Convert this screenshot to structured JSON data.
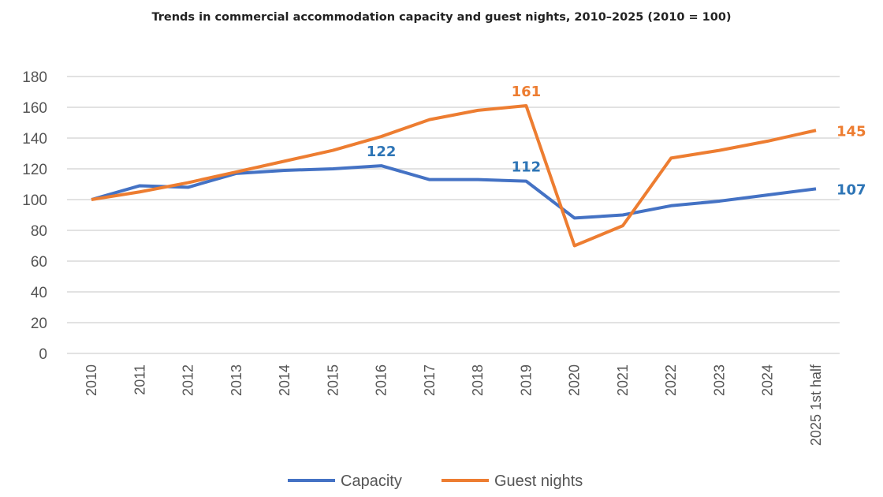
{
  "chart_data": {
    "type": "line",
    "title": "Trends in commercial accommodation capacity and guest nights, 2010–2025 (2010 = 100)",
    "xlabel": "",
    "ylabel": "",
    "categories": [
      "2010",
      "2011",
      "2012",
      "2013",
      "2014",
      "2015",
      "2016",
      "2017",
      "2018",
      "2019",
      "2020",
      "2021",
      "2022",
      "2023",
      "2024",
      "2025 1st half"
    ],
    "ylim": [
      0,
      180
    ],
    "yticks": [
      0,
      20,
      40,
      60,
      80,
      100,
      120,
      140,
      160,
      180
    ],
    "grid": true,
    "legend_position": "bottom",
    "series": [
      {
        "name": "Capacity",
        "color": "#4472C4",
        "label_color": "#2E75B6",
        "values": [
          100,
          109,
          108,
          117,
          119,
          120,
          122,
          113,
          113,
          112,
          88,
          90,
          96,
          99,
          103,
          107
        ],
        "data_labels": {
          "6": "122",
          "9": "112",
          "15": "107"
        }
      },
      {
        "name": "Guest nights",
        "color": "#ED7D31",
        "label_color": "#ED7D31",
        "values": [
          100,
          105,
          111,
          118,
          125,
          132,
          141,
          152,
          158,
          161,
          70,
          83,
          127,
          132,
          138,
          145
        ],
        "data_labels": {
          "9": "161",
          "15": "145"
        }
      }
    ]
  }
}
